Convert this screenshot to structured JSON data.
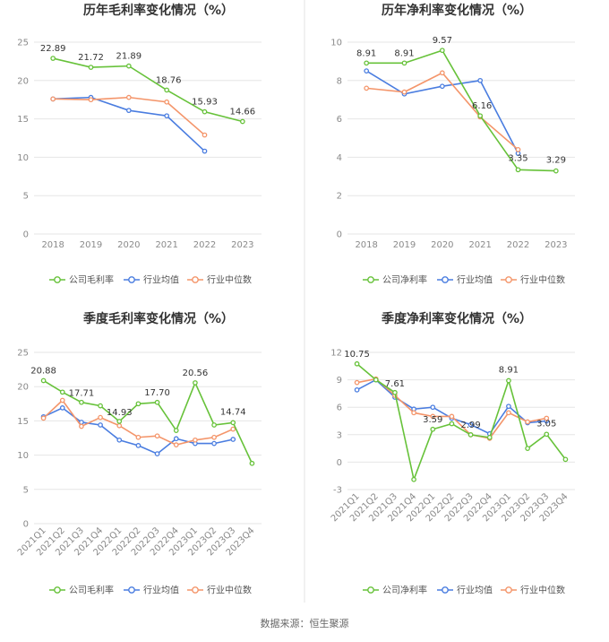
{
  "colors": {
    "company": "#67c23a",
    "industry_avg": "#4a7de0",
    "industry_median": "#f4956a"
  },
  "footer": {
    "source": "数据来源：恒生聚源"
  },
  "chart_data": [
    {
      "type": "line",
      "title": "历年毛利率变化情况（%）",
      "categories": [
        "2018",
        "2019",
        "2020",
        "2021",
        "2022",
        "2023"
      ],
      "ylim": [
        0,
        25
      ],
      "yticks": [
        0,
        5,
        10,
        15,
        20,
        25
      ],
      "grid": true,
      "legend": "bottom",
      "series": [
        {
          "name": "公司毛利率",
          "key": "company",
          "values": [
            22.89,
            21.72,
            21.89,
            18.76,
            15.93,
            14.66
          ],
          "labels": [
            "22.89",
            "21.72",
            "21.89",
            "18.76",
            "15.93",
            "14.66"
          ]
        },
        {
          "name": "行业均值",
          "key": "industry_avg",
          "values": [
            17.6,
            17.8,
            16.1,
            15.4,
            10.8,
            null
          ]
        },
        {
          "name": "行业中位数",
          "key": "industry_median",
          "values": [
            17.6,
            17.5,
            17.8,
            17.2,
            12.9,
            null
          ]
        }
      ]
    },
    {
      "type": "line",
      "title": "历年净利率变化情况（%）",
      "categories": [
        "2018",
        "2019",
        "2020",
        "2021",
        "2022",
        "2023"
      ],
      "ylim": [
        0,
        10
      ],
      "yticks": [
        0,
        2,
        4,
        6,
        8,
        10
      ],
      "grid": true,
      "legend": "bottom",
      "series": [
        {
          "name": "公司净利率",
          "key": "company",
          "values": [
            8.91,
            8.91,
            9.57,
            6.16,
            3.35,
            3.29
          ],
          "labels": [
            "8.91",
            "8.91",
            "9.57",
            "6.16",
            "3.35",
            "3.29"
          ]
        },
        {
          "name": "行业均值",
          "key": "industry_avg",
          "values": [
            8.5,
            7.3,
            7.7,
            8.0,
            4.2,
            null
          ]
        },
        {
          "name": "行业中位数",
          "key": "industry_median",
          "values": [
            7.6,
            7.4,
            8.4,
            6.1,
            4.4,
            null
          ]
        }
      ]
    },
    {
      "type": "line",
      "title": "季度毛利率变化情况（%）",
      "categories": [
        "2021Q1",
        "2021Q2",
        "2021Q3",
        "2021Q4",
        "2022Q1",
        "2022Q2",
        "2022Q3",
        "2022Q4",
        "2023Q1",
        "2023Q2",
        "2023Q3",
        "2023Q4"
      ],
      "ylim": [
        0,
        25
      ],
      "yticks": [
        0,
        5,
        10,
        15,
        20,
        25
      ],
      "grid": true,
      "legend": "bottom",
      "series": [
        {
          "name": "公司毛利率",
          "key": "company",
          "values": [
            20.88,
            19.2,
            17.71,
            17.2,
            14.93,
            17.5,
            17.7,
            13.6,
            20.56,
            14.4,
            14.74,
            8.8
          ],
          "labels": [
            "20.88",
            null,
            "17.71",
            null,
            "14.93",
            null,
            "17.70",
            null,
            "20.56",
            null,
            "14.74",
            null
          ]
        },
        {
          "name": "行业均值",
          "key": "industry_avg",
          "values": [
            15.6,
            16.9,
            14.8,
            14.4,
            12.2,
            11.4,
            10.2,
            12.4,
            11.7,
            11.7,
            12.3,
            null
          ]
        },
        {
          "name": "行业中位数",
          "key": "industry_median",
          "values": [
            15.4,
            18.0,
            14.2,
            15.5,
            14.3,
            12.6,
            12.8,
            11.5,
            12.2,
            12.6,
            13.8,
            null
          ]
        }
      ]
    },
    {
      "type": "line",
      "title": "季度净利率变化情况（%）",
      "categories": [
        "2021Q1",
        "2021Q2",
        "2021Q3",
        "2021Q4",
        "2022Q1",
        "2022Q2",
        "2022Q3",
        "2022Q4",
        "2023Q1",
        "2023Q2",
        "2023Q3",
        "2023Q4"
      ],
      "ylim": [
        -3,
        12
      ],
      "yticks": [
        -3,
        0,
        3,
        6,
        9,
        12
      ],
      "grid": true,
      "legend": "bottom",
      "series": [
        {
          "name": "公司净利率",
          "key": "company",
          "values": [
            10.75,
            9.0,
            7.61,
            -1.9,
            3.59,
            4.2,
            2.99,
            2.7,
            8.91,
            1.5,
            3.05,
            0.3
          ],
          "labels": [
            "10.75",
            null,
            "7.61",
            null,
            "3.59",
            null,
            "2.99",
            null,
            "8.91",
            null,
            "3.05",
            null
          ]
        },
        {
          "name": "行业均值",
          "key": "industry_avg",
          "values": [
            7.9,
            9.0,
            7.1,
            5.8,
            6.0,
            4.8,
            4.1,
            3.1,
            6.1,
            4.3,
            4.5,
            null
          ]
        },
        {
          "name": "行业中位数",
          "key": "industry_median",
          "values": [
            8.7,
            9.1,
            7.3,
            5.4,
            5.0,
            5.0,
            3.0,
            2.6,
            5.4,
            4.4,
            4.8,
            null
          ]
        }
      ]
    }
  ]
}
